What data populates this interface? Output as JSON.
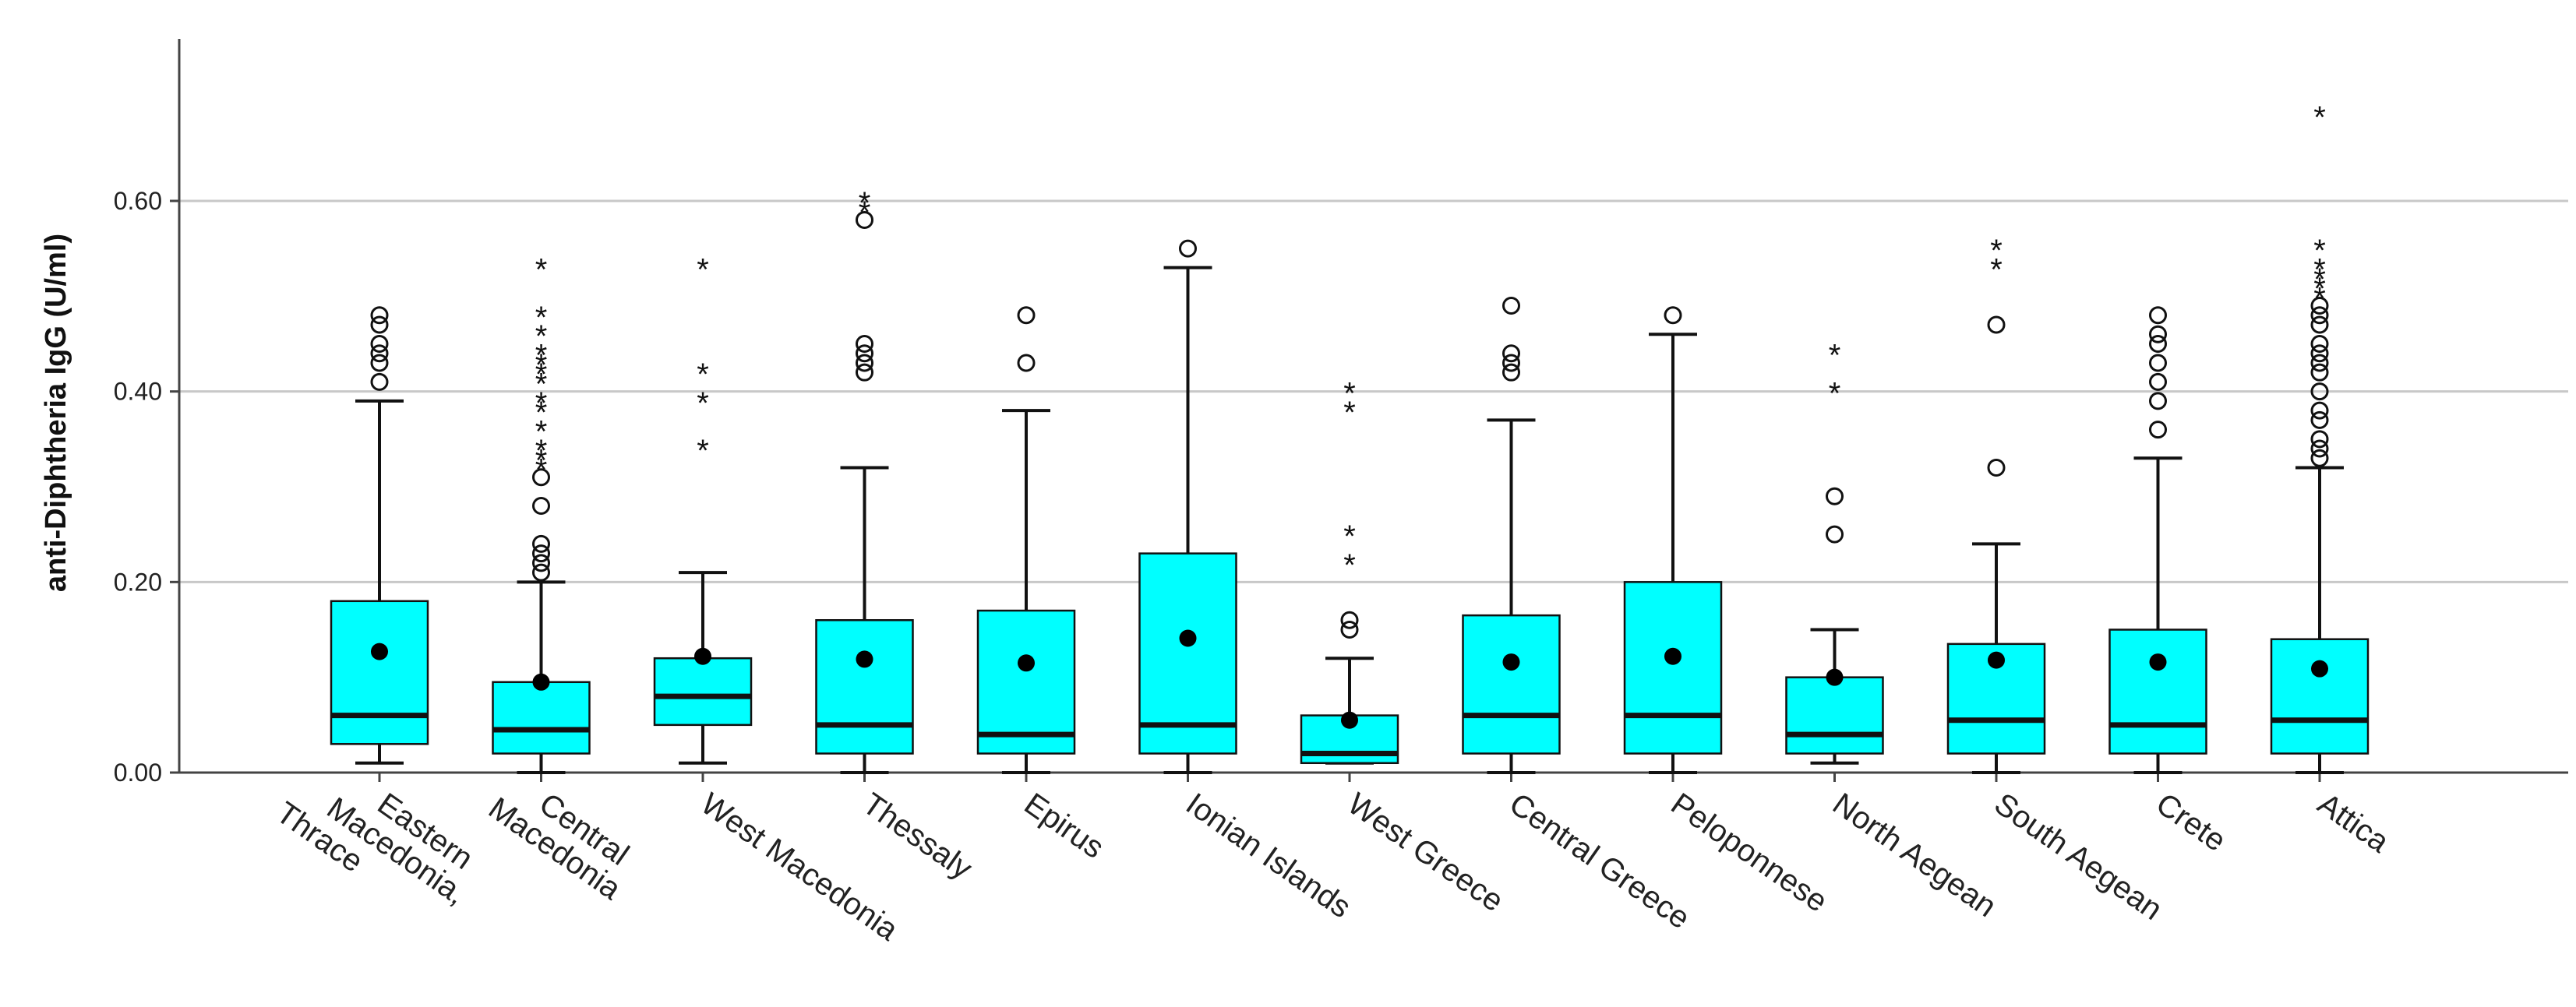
{
  "chart_data": {
    "type": "boxplot",
    "title": "",
    "xlabel": "",
    "ylabel": "anti-Diphtheria IgG (U/ml)",
    "ylim": [
      0,
      0.77
    ],
    "yticks": [
      0,
      0.2,
      0.4,
      0.6
    ],
    "ytick_labels": [
      "0.00",
      "0.20",
      "0.40",
      "0.60"
    ],
    "grid": true,
    "box_color": "#00FFFF",
    "categories": [
      {
        "label_lines": [
          "Eastern",
          "Macedonia,",
          "Thrace"
        ],
        "whisker_low": 0.01,
        "q1": 0.03,
        "median": 0.06,
        "q3": 0.18,
        "whisker_high": 0.39,
        "mean": 0.127,
        "outliers_circle": [
          0.41,
          0.43,
          0.44,
          0.45,
          0.47,
          0.48
        ],
        "outliers_star": []
      },
      {
        "label_lines": [
          "Central",
          "Macedonia"
        ],
        "whisker_low": 0.0,
        "q1": 0.02,
        "median": 0.045,
        "q3": 0.095,
        "whisker_high": 0.2,
        "mean": 0.095,
        "outliers_circle": [
          0.21,
          0.22,
          0.23,
          0.24,
          0.28,
          0.31
        ],
        "outliers_star": [
          0.32,
          0.33,
          0.34,
          0.36,
          0.38,
          0.39,
          0.41,
          0.42,
          0.43,
          0.44,
          0.46,
          0.48,
          0.53
        ]
      },
      {
        "label_lines": [
          "West Macedonia"
        ],
        "whisker_low": 0.01,
        "q1": 0.05,
        "median": 0.08,
        "q3": 0.12,
        "whisker_high": 0.21,
        "mean": 0.122,
        "outliers_circle": [],
        "outliers_star": [
          0.34,
          0.39,
          0.42,
          0.53
        ]
      },
      {
        "label_lines": [
          "Thessaly"
        ],
        "whisker_low": 0.0,
        "q1": 0.02,
        "median": 0.05,
        "q3": 0.16,
        "whisker_high": 0.32,
        "mean": 0.119,
        "outliers_circle": [
          0.42,
          0.43,
          0.44,
          0.45,
          0.58
        ],
        "outliers_star": [
          0.59,
          0.6
        ]
      },
      {
        "label_lines": [
          "Epirus"
        ],
        "whisker_low": 0.0,
        "q1": 0.02,
        "median": 0.04,
        "q3": 0.17,
        "whisker_high": 0.38,
        "mean": 0.115,
        "outliers_circle": [
          0.43,
          0.48
        ],
        "outliers_star": []
      },
      {
        "label_lines": [
          "Ionian Islands"
        ],
        "whisker_low": 0.0,
        "q1": 0.02,
        "median": 0.05,
        "q3": 0.23,
        "whisker_high": 0.53,
        "mean": 0.141,
        "outliers_circle": [
          0.55
        ],
        "outliers_star": []
      },
      {
        "label_lines": [
          "West Greece"
        ],
        "whisker_low": 0.01,
        "q1": 0.01,
        "median": 0.02,
        "q3": 0.06,
        "whisker_high": 0.12,
        "mean": 0.055,
        "outliers_circle": [
          0.15,
          0.16
        ],
        "outliers_star": [
          0.22,
          0.25,
          0.38,
          0.4
        ]
      },
      {
        "label_lines": [
          "Central Greece"
        ],
        "whisker_low": 0.0,
        "q1": 0.02,
        "median": 0.06,
        "q3": 0.165,
        "whisker_high": 0.37,
        "mean": 0.116,
        "outliers_circle": [
          0.42,
          0.43,
          0.44,
          0.49
        ],
        "outliers_star": []
      },
      {
        "label_lines": [
          "Peloponnese"
        ],
        "whisker_low": 0.0,
        "q1": 0.02,
        "median": 0.06,
        "q3": 0.2,
        "whisker_high": 0.46,
        "mean": 0.122,
        "outliers_circle": [
          0.48
        ],
        "outliers_star": []
      },
      {
        "label_lines": [
          "North Aegean"
        ],
        "whisker_low": 0.01,
        "q1": 0.02,
        "median": 0.04,
        "q3": 0.1,
        "whisker_high": 0.15,
        "mean": 0.1,
        "outliers_circle": [
          0.25,
          0.29
        ],
        "outliers_star": [
          0.4,
          0.44
        ]
      },
      {
        "label_lines": [
          "South Aegean"
        ],
        "whisker_low": 0.0,
        "q1": 0.02,
        "median": 0.055,
        "q3": 0.135,
        "whisker_high": 0.24,
        "mean": 0.118,
        "outliers_circle": [
          0.32,
          0.47
        ],
        "outliers_star": [
          0.53,
          0.55
        ]
      },
      {
        "label_lines": [
          "Crete"
        ],
        "whisker_low": 0.0,
        "q1": 0.02,
        "median": 0.05,
        "q3": 0.15,
        "whisker_high": 0.33,
        "mean": 0.116,
        "outliers_circle": [
          0.36,
          0.39,
          0.41,
          0.43,
          0.45,
          0.46,
          0.48
        ],
        "outliers_star": []
      },
      {
        "label_lines": [
          "Attica"
        ],
        "whisker_low": 0.0,
        "q1": 0.02,
        "median": 0.055,
        "q3": 0.14,
        "whisker_high": 0.32,
        "mean": 0.109,
        "outliers_circle": [
          0.33,
          0.34,
          0.35,
          0.37,
          0.38,
          0.4,
          0.42,
          0.43,
          0.44,
          0.45,
          0.47,
          0.48,
          0.49
        ],
        "outliers_star": [
          0.5,
          0.51,
          0.52,
          0.53,
          0.55,
          0.69
        ]
      }
    ]
  }
}
